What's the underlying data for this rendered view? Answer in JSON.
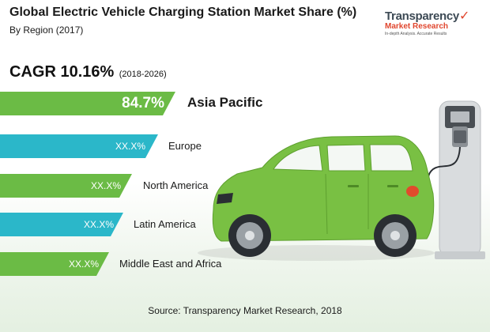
{
  "header": {
    "title": "Global Electric Vehicle Charging Station Market Share (%)",
    "subtitle": "By Region (2017)"
  },
  "logo": {
    "name": "Transparency",
    "subname": "Market Research",
    "tagline": "In-depth Analysis. Accurate Results"
  },
  "cagr": {
    "label": "CAGR 10.16%",
    "period": "(2018-2026)"
  },
  "chart_data": {
    "type": "bar",
    "orientation": "horizontal",
    "categories": [
      "Asia Pacific",
      "Europe",
      "North America",
      "Latin America",
      "Middle East and Africa"
    ],
    "value_labels": [
      "84.7%",
      "XX.X%",
      "XX.X%",
      "XX.X%",
      "XX.X%"
    ],
    "values": [
      84.7,
      null,
      null,
      null,
      null
    ],
    "colors": [
      "#6bbb45",
      "#2bb7c9",
      "#6bbb45",
      "#2bb7c9",
      "#6bbb45"
    ]
  },
  "source": "Source: Transparency Market Research, 2018"
}
